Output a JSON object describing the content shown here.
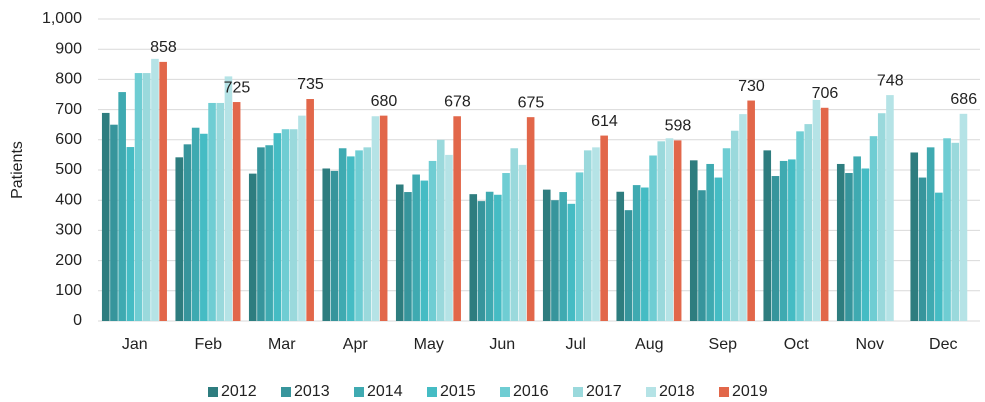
{
  "chart_data": {
    "type": "bar",
    "y_label": "Patients",
    "categories": [
      "Jan",
      "Feb",
      "Mar",
      "Apr",
      "May",
      "Jun",
      "Jul",
      "Aug",
      "Sep",
      "Oct",
      "Nov",
      "Dec"
    ],
    "series": [
      {
        "name": "2012",
        "color": "#2e7d7f",
        "values": [
          689,
          542,
          488,
          505,
          452,
          420,
          435,
          428,
          532,
          565,
          520,
          558
        ]
      },
      {
        "name": "2013",
        "color": "#37959c",
        "values": [
          650,
          585,
          575,
          497,
          427,
          397,
          400,
          367,
          433,
          480,
          490,
          475
        ]
      },
      {
        "name": "2014",
        "color": "#3faab1",
        "values": [
          758,
          640,
          582,
          572,
          485,
          428,
          427,
          450,
          520,
          530,
          545,
          575
        ]
      },
      {
        "name": "2015",
        "color": "#45bcc4",
        "values": [
          576,
          620,
          622,
          545,
          465,
          418,
          388,
          442,
          475,
          535,
          505,
          425
        ]
      },
      {
        "name": "2016",
        "color": "#6fcdd3",
        "values": [
          821,
          722,
          635,
          565,
          530,
          490,
          492,
          548,
          572,
          628,
          612,
          605
        ]
      },
      {
        "name": "2017",
        "color": "#9ad9dc",
        "values": [
          821,
          722,
          635,
          575,
          600,
          572,
          565,
          595,
          630,
          652,
          688,
          590
        ]
      },
      {
        "name": "2018",
        "color": "#b5e3e6",
        "values": [
          868,
          810,
          680,
          678,
          550,
          517,
          575,
          605,
          685,
          732,
          748,
          686
        ],
        "value_labels": [
          null,
          null,
          null,
          null,
          null,
          null,
          null,
          null,
          null,
          null,
          "748",
          "686"
        ]
      },
      {
        "name": "2019",
        "color": "#e2674a",
        "values": [
          858,
          725,
          735,
          680,
          678,
          675,
          614,
          598,
          730,
          706,
          null,
          null
        ],
        "value_labels": [
          "858",
          "725",
          "735",
          "680",
          "678",
          "675",
          "614",
          "598",
          "730",
          "706",
          null,
          null
        ]
      }
    ],
    "ylim": [
      0,
      1000
    ],
    "yticks": [
      0,
      100,
      200,
      300,
      400,
      500,
      600,
      700,
      800,
      900,
      {
        "value": 1000,
        "label": "1,000"
      }
    ],
    "grid": true,
    "legend": "bottom"
  }
}
